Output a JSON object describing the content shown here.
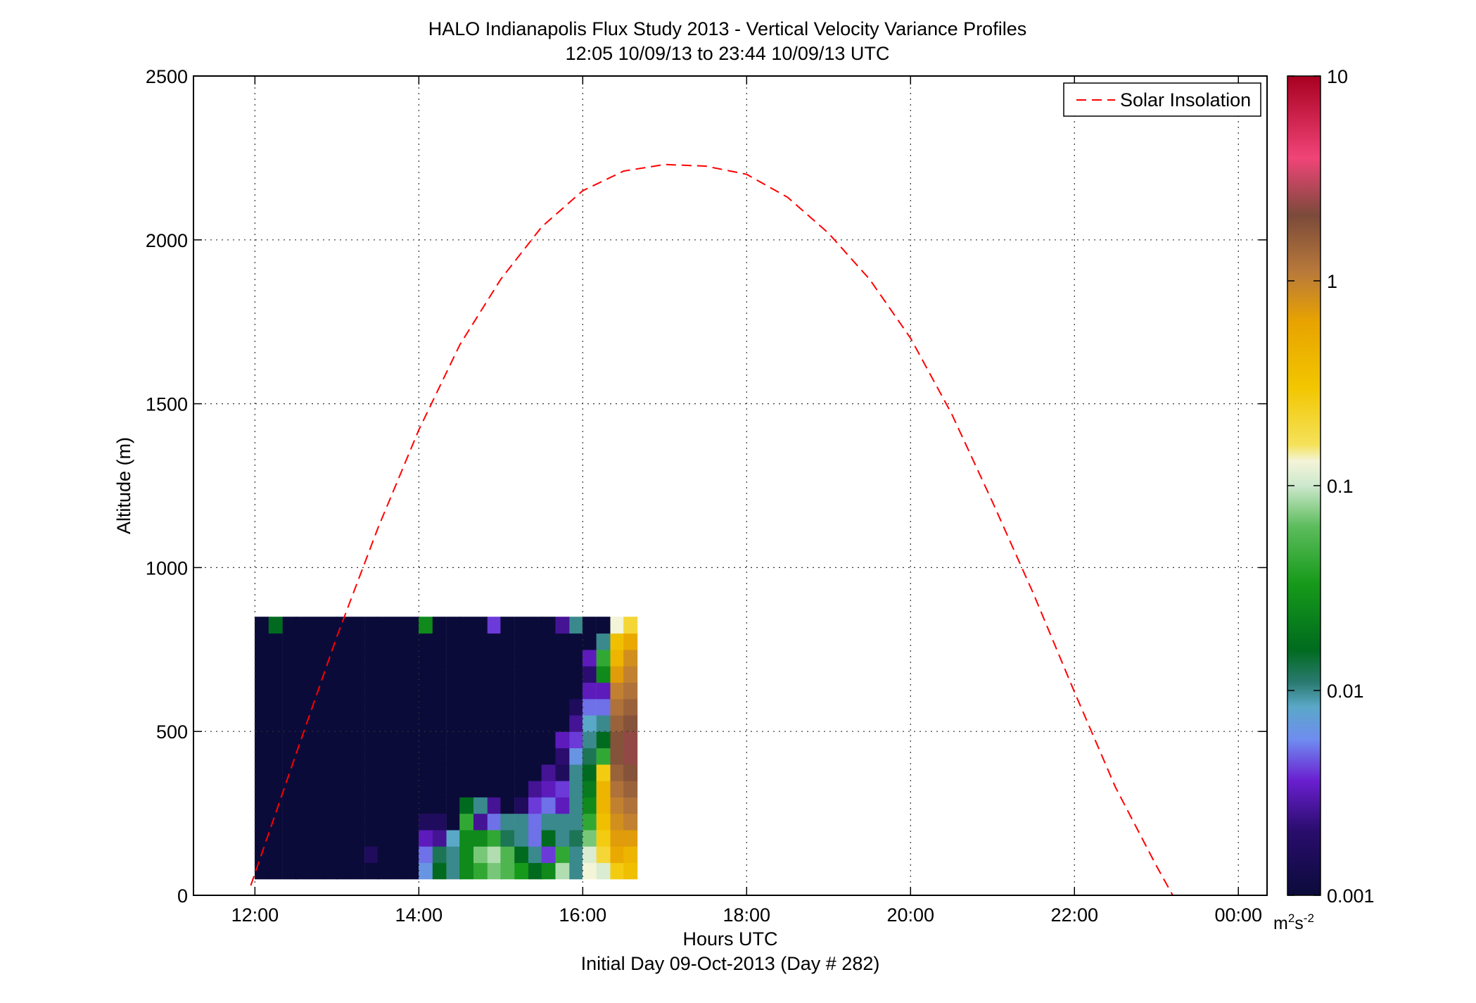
{
  "chart_data": {
    "type": "heatmap",
    "title": "HALO Indianapolis Flux Study 2013 - Vertical Velocity Variance Profiles",
    "subtitle": "12:05 10/09/13 to 23:44 10/09/13  UTC",
    "xlabel": "Hours UTC",
    "xlabel2": "Initial Day 09-Oct-2013 (Day # 282)",
    "ylabel": "Altitude (m)",
    "xlim": [
      11.25,
      24.35
    ],
    "ylim": [
      0,
      2500
    ],
    "grid": true,
    "x_ticks": [
      12,
      14,
      16,
      18,
      20,
      22,
      24
    ],
    "x_tick_labels": [
      "12:00",
      "14:00",
      "16:00",
      "18:00",
      "20:00",
      "22:00",
      "00:00"
    ],
    "y_ticks": [
      0,
      500,
      1000,
      1500,
      2000,
      2500
    ],
    "y_tick_labels": [
      "0",
      "500",
      "1000",
      "1500",
      "2000",
      "2500"
    ],
    "colorbar": {
      "scale": "log",
      "range": [
        0.001,
        10
      ],
      "ticks": [
        0.001,
        0.01,
        0.1,
        1,
        10
      ],
      "tick_labels": [
        "0.001",
        "0.01",
        "0.1",
        "1",
        "10"
      ],
      "unit_base": "m",
      "unit_sup1": "2",
      "unit_mid": "s",
      "unit_sup2": "-2"
    },
    "legend": {
      "position": "top-right",
      "entries": [
        {
          "label": "Solar Insolation",
          "color": "#ff0000",
          "style": "dashed"
        }
      ]
    },
    "heatmap": {
      "x_start_hour": 12.0833,
      "x_step_hours": 0.1667,
      "y_start_m": 75,
      "y_step_m": 50,
      "value_unit": "log10(m2 s-2)",
      "columns": [
        {
          "x": 12.08,
          "bottom": [
            -3,
            -3,
            -3,
            -3,
            -3,
            -3,
            -3,
            -3,
            -3,
            -3,
            -3,
            -3,
            -3,
            -3,
            -3,
            -3
          ]
        },
        {
          "x": 12.25,
          "bottom": [
            -3,
            -3,
            -3,
            -3,
            -3,
            -3,
            -3,
            -3,
            -3,
            -3,
            -3,
            -3,
            -3,
            -3,
            -3,
            -1.8
          ]
        },
        {
          "x": 12.42,
          "bottom": [
            -3,
            -3,
            -3,
            -3,
            -3,
            -3,
            -3,
            -3,
            -3,
            -3,
            -3,
            -3,
            -3,
            -3,
            -3,
            -3
          ]
        },
        {
          "x": 12.58,
          "bottom": [
            -3,
            -3,
            -3,
            -3,
            -3,
            -3,
            -3,
            -3,
            -3,
            -3,
            -3,
            -3,
            -3,
            -3,
            -3,
            -3
          ]
        },
        {
          "x": 12.75,
          "bottom": [
            -3,
            -3,
            -3,
            -3,
            -3,
            -3,
            -3,
            -3,
            -3,
            -3,
            -3,
            -3,
            -3,
            -3,
            -3,
            -3
          ]
        },
        {
          "x": 12.92,
          "bottom": [
            -3,
            -3,
            -3,
            -3,
            -3,
            -3,
            -3,
            -3,
            -3,
            -3,
            -3,
            -3,
            -3,
            -3,
            -3,
            -3
          ]
        },
        {
          "x": 13.08,
          "bottom": [
            -3,
            -3,
            -3,
            -3,
            -3,
            -3,
            -3,
            -3,
            -3,
            -3,
            -3,
            -3,
            -3,
            -3,
            -3,
            -3
          ]
        },
        {
          "x": 13.25,
          "bottom": [
            -3,
            -3,
            -3,
            -3,
            -3,
            -3,
            -3,
            -3,
            -3,
            -3,
            -3,
            -3,
            -3,
            -3,
            -3,
            -3
          ]
        },
        {
          "x": 13.42,
          "bottom": [
            -3,
            -2.8,
            -3,
            -3,
            -3,
            -3,
            -3,
            -3,
            -3,
            -3,
            -3,
            -3,
            -3,
            -3,
            -3,
            -3
          ]
        },
        {
          "x": 13.58,
          "bottom": [
            -3,
            -3,
            -3,
            -3,
            -3,
            -3,
            -3,
            -3,
            -3,
            -3,
            -3,
            -3,
            -3,
            -3,
            -3,
            -3
          ]
        },
        {
          "x": 13.75,
          "bottom": [
            -3,
            -3,
            -3,
            -3,
            -3,
            -3,
            -3,
            -3,
            -3,
            -3,
            -3,
            -3,
            -3,
            -3,
            -3,
            -3
          ]
        },
        {
          "x": 13.92,
          "bottom": [
            -3,
            -3,
            -3,
            -3,
            -3,
            -3,
            -3,
            -3,
            -3,
            -3,
            -3,
            -3,
            -3,
            -3,
            -3,
            -3
          ]
        },
        {
          "x": 14.08,
          "bottom": [
            -2.2,
            -2.3,
            -2.5,
            -2.8,
            -3,
            -3,
            -3,
            -3,
            -3,
            -3,
            -3,
            -3,
            -3,
            -3,
            -3,
            -1.6
          ]
        },
        {
          "x": 14.25,
          "bottom": [
            -1.8,
            -1.9,
            -2.6,
            -2.8,
            -3,
            -3,
            -3,
            -3,
            -3,
            -3,
            -3,
            -3,
            -3,
            -3,
            -3,
            -3
          ]
        },
        {
          "x": 14.42,
          "bottom": [
            -2.0,
            -2.0,
            -2.1,
            -3,
            -3,
            -3,
            -3,
            -3,
            -3,
            -3,
            -3,
            -3,
            -3,
            -3,
            -3,
            -3
          ]
        },
        {
          "x": 14.58,
          "bottom": [
            -1.6,
            -1.6,
            -1.6,
            -1.4,
            -1.8,
            -3,
            -3,
            -3,
            -3,
            -3,
            -3,
            -3,
            -3,
            -3,
            -3,
            -3
          ]
        },
        {
          "x": 14.75,
          "bottom": [
            -1.4,
            -1.2,
            -1.6,
            -2.6,
            -2.0,
            -3,
            -3,
            -3,
            -3,
            -3,
            -3,
            -3,
            -3,
            -3,
            -3,
            -3
          ]
        },
        {
          "x": 14.92,
          "bottom": [
            -1.2,
            -1.1,
            -1.4,
            -2.3,
            -2.6,
            -3,
            -3,
            -3,
            -3,
            -3,
            -3,
            -3,
            -3,
            -3,
            -3,
            -2.4
          ]
        },
        {
          "x": 15.08,
          "bottom": [
            -1.3,
            -1.3,
            -1.9,
            -2.0,
            -3,
            -3,
            -3,
            -3,
            -3,
            -3,
            -3,
            -3,
            -3,
            -3,
            -3,
            -3
          ]
        },
        {
          "x": 15.25,
          "bottom": [
            -1.5,
            -1.8,
            -2.0,
            -2.0,
            -2.8,
            -3,
            -3,
            -3,
            -3,
            -3,
            -3,
            -3,
            -3,
            -3,
            -3,
            -3
          ]
        },
        {
          "x": 15.42,
          "bottom": [
            -1.8,
            -2.0,
            -2.3,
            -2.3,
            -2.4,
            -2.6,
            -3,
            -3,
            -3,
            -3,
            -3,
            -3,
            -3,
            -3,
            -3,
            -3
          ]
        },
        {
          "x": 15.58,
          "bottom": [
            -1.6,
            -2.4,
            -1.8,
            -2.0,
            -2.3,
            -2.5,
            -2.6,
            -3,
            -3,
            -3,
            -3,
            -3,
            -3,
            -3,
            -3,
            -3
          ]
        },
        {
          "x": 15.75,
          "bottom": [
            -1.1,
            -1.4,
            -2.0,
            -2.0,
            -2.5,
            -2.4,
            -2.8,
            -2.7,
            -2.5,
            -3,
            -3,
            -3,
            -3,
            -3,
            -3,
            -2.6
          ]
        },
        {
          "x": 15.92,
          "bottom": [
            -2.0,
            -2.0,
            -1.9,
            -2.0,
            -2.0,
            -2.0,
            -2.0,
            -2.2,
            -2.4,
            -2.6,
            -2.8,
            -3,
            -3,
            -3,
            -3,
            -2.0
          ]
        },
        {
          "x": 16.08,
          "bottom": [
            -0.9,
            -1.0,
            -1.2,
            -1.4,
            -1.6,
            -1.7,
            -1.8,
            -1.9,
            -2.0,
            -2.1,
            -2.3,
            -2.5,
            -2.7,
            -2.5,
            -3,
            -3
          ]
        },
        {
          "x": 16.25,
          "bottom": [
            -1.0,
            -0.7,
            -0.6,
            -0.5,
            -0.4,
            -0.4,
            -0.6,
            -1.4,
            -1.8,
            -2.0,
            -2.3,
            -2.5,
            -1.6,
            -1.4,
            -2.0,
            -3
          ]
        },
        {
          "x": 16.42,
          "bottom": [
            -0.6,
            -0.3,
            -0.2,
            -0.1,
            0.0,
            0.1,
            0.2,
            0.3,
            0.3,
            0.2,
            0.1,
            0.0,
            -0.2,
            -0.4,
            -0.5,
            -0.9
          ]
        },
        {
          "x": 16.58,
          "bottom": [
            -0.5,
            -0.4,
            -0.2,
            0.0,
            0.1,
            0.2,
            0.3,
            0.4,
            0.4,
            0.3,
            0.2,
            0.1,
            0.0,
            -0.1,
            -0.3,
            -0.7
          ]
        }
      ]
    },
    "solar_insolation": {
      "x_hours": [
        11.95,
        12.5,
        13.0,
        13.5,
        14.0,
        14.5,
        15.0,
        15.5,
        16.0,
        16.5,
        17.0,
        17.5,
        18.0,
        18.5,
        19.0,
        19.5,
        20.0,
        20.5,
        21.0,
        21.5,
        22.0,
        22.5,
        23.0,
        23.2
      ],
      "y_m": [
        30,
        430,
        790,
        1120,
        1420,
        1680,
        1880,
        2040,
        2150,
        2210,
        2230,
        2225,
        2200,
        2130,
        2020,
        1880,
        1700,
        1470,
        1200,
        920,
        620,
        330,
        90,
        0
      ]
    }
  }
}
